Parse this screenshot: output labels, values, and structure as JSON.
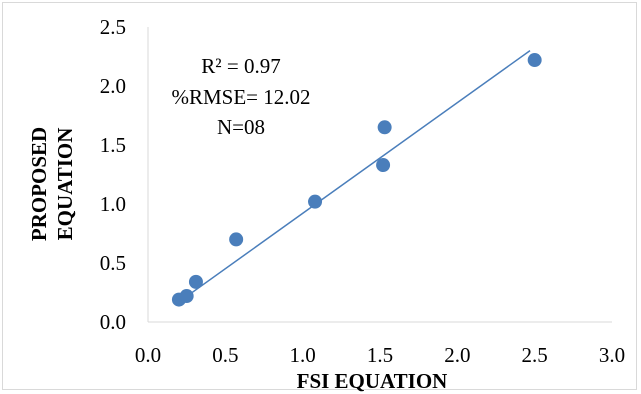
{
  "chart_data": {
    "type": "scatter",
    "title": "",
    "xlabel": "FSI EQUATION",
    "ylabel_lines": [
      "PROPOSED",
      "EQUATION"
    ],
    "xlim": [
      0.0,
      3.0
    ],
    "ylim": [
      0.0,
      2.5
    ],
    "x_ticks": [
      "0.0",
      "0.5",
      "1.0",
      "1.5",
      "2.0",
      "2.5",
      "3.0"
    ],
    "y_ticks": [
      "0.0",
      "0.5",
      "1.0",
      "1.5",
      "2.0",
      "2.5"
    ],
    "grid": false,
    "marker_color": "#4a7ebb",
    "trendline_color": "#4a7ebb",
    "points": [
      {
        "x": 0.2,
        "y": 0.19
      },
      {
        "x": 0.25,
        "y": 0.22
      },
      {
        "x": 0.31,
        "y": 0.34
      },
      {
        "x": 0.57,
        "y": 0.7
      },
      {
        "x": 1.08,
        "y": 1.02
      },
      {
        "x": 1.52,
        "y": 1.33
      },
      {
        "x": 1.53,
        "y": 1.65
      },
      {
        "x": 2.5,
        "y": 2.22
      }
    ],
    "trendline": {
      "x": [
        0.2,
        2.47
      ],
      "y": [
        0.17,
        2.3
      ]
    },
    "annotations": [
      "R² = 0.97",
      "%RMSE= 12.02",
      "N=08"
    ]
  }
}
